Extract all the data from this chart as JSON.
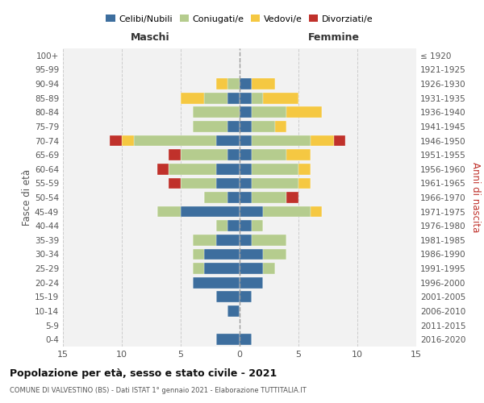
{
  "age_groups": [
    "0-4",
    "5-9",
    "10-14",
    "15-19",
    "20-24",
    "25-29",
    "30-34",
    "35-39",
    "40-44",
    "45-49",
    "50-54",
    "55-59",
    "60-64",
    "65-69",
    "70-74",
    "75-79",
    "80-84",
    "85-89",
    "90-94",
    "95-99",
    "100+"
  ],
  "birth_years": [
    "2016-2020",
    "2011-2015",
    "2006-2010",
    "2001-2005",
    "1996-2000",
    "1991-1995",
    "1986-1990",
    "1981-1985",
    "1976-1980",
    "1971-1975",
    "1966-1970",
    "1961-1965",
    "1956-1960",
    "1951-1955",
    "1946-1950",
    "1941-1945",
    "1936-1940",
    "1931-1935",
    "1926-1930",
    "1921-1925",
    "≤ 1920"
  ],
  "maschi": {
    "celibi": [
      2,
      0,
      1,
      2,
      4,
      3,
      3,
      2,
      1,
      5,
      1,
      2,
      2,
      1,
      2,
      1,
      0,
      1,
      0,
      0,
      0
    ],
    "coniugati": [
      0,
      0,
      0,
      0,
      0,
      1,
      1,
      2,
      1,
      2,
      2,
      3,
      4,
      4,
      7,
      3,
      4,
      2,
      1,
      0,
      0
    ],
    "vedove": [
      0,
      0,
      0,
      0,
      0,
      0,
      0,
      0,
      0,
      0,
      0,
      0,
      0,
      0,
      1,
      0,
      0,
      2,
      1,
      0,
      0
    ],
    "divorziate": [
      0,
      0,
      0,
      0,
      0,
      0,
      0,
      0,
      0,
      0,
      0,
      1,
      1,
      1,
      1,
      0,
      0,
      0,
      0,
      0,
      0
    ]
  },
  "femmine": {
    "nubili": [
      1,
      0,
      0,
      1,
      2,
      2,
      2,
      1,
      1,
      2,
      1,
      1,
      1,
      1,
      1,
      1,
      1,
      1,
      1,
      0,
      0
    ],
    "coniugate": [
      0,
      0,
      0,
      0,
      0,
      1,
      2,
      3,
      1,
      4,
      3,
      4,
      4,
      3,
      5,
      2,
      3,
      1,
      0,
      0,
      0
    ],
    "vedove": [
      0,
      0,
      0,
      0,
      0,
      0,
      0,
      0,
      0,
      1,
      0,
      1,
      1,
      2,
      2,
      1,
      3,
      3,
      2,
      0,
      0
    ],
    "divorziate": [
      0,
      0,
      0,
      0,
      0,
      0,
      0,
      0,
      0,
      0,
      1,
      0,
      0,
      0,
      1,
      0,
      0,
      0,
      0,
      0,
      0
    ]
  },
  "color_celibi": "#3d6e9e",
  "color_coniugati": "#b5cc8e",
  "color_vedove": "#f5c842",
  "color_divorziate": "#c0312b",
  "title": "Popolazione per età, sesso e stato civile - 2021",
  "subtitle": "COMUNE DI VALVESTINO (BS) - Dati ISTAT 1° gennaio 2021 - Elaborazione TUTTITALIA.IT",
  "xlabel_left": "Maschi",
  "xlabel_right": "Femmine",
  "ylabel_left": "Fasce di età",
  "ylabel_right": "Anni di nascita",
  "xlim": 15,
  "legend_labels": [
    "Celibi/Nubili",
    "Coniugati/e",
    "Vedovi/e",
    "Divorziati/e"
  ]
}
